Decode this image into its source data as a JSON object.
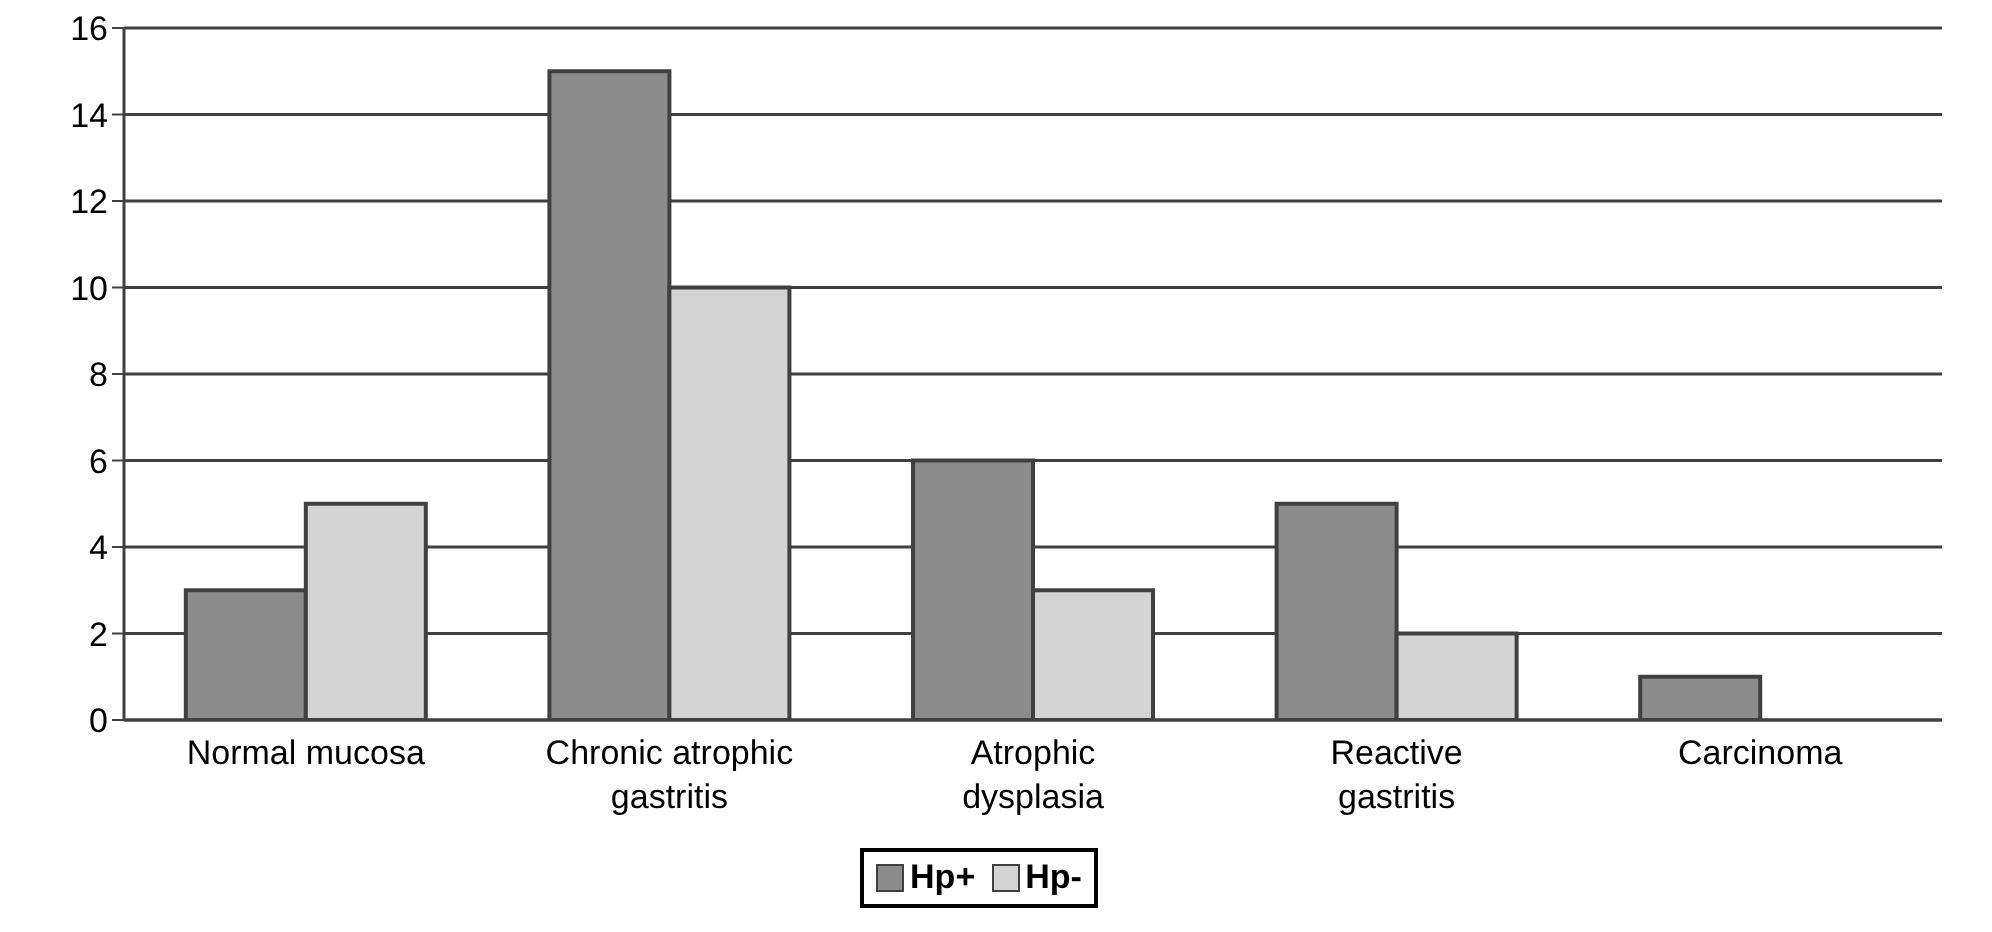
{
  "chart_data": {
    "type": "bar",
    "categories": [
      "Normal mucosa",
      "Chronic atrophic gastritis",
      "Atrophic dysplasia",
      "Reactive gastritis",
      "Carcinoma"
    ],
    "series": [
      {
        "name": "Hp+",
        "color": "#8c8c8c",
        "values": [
          3,
          15,
          6,
          5,
          1
        ]
      },
      {
        "name": "Hp-",
        "color": "#d4d4d4",
        "values": [
          5,
          10,
          3,
          2,
          0
        ]
      }
    ],
    "ylim": [
      0,
      16
    ],
    "yticks": [
      0,
      2,
      4,
      6,
      8,
      10,
      12,
      14,
      16
    ],
    "grid": "y",
    "legend": "bottom"
  }
}
